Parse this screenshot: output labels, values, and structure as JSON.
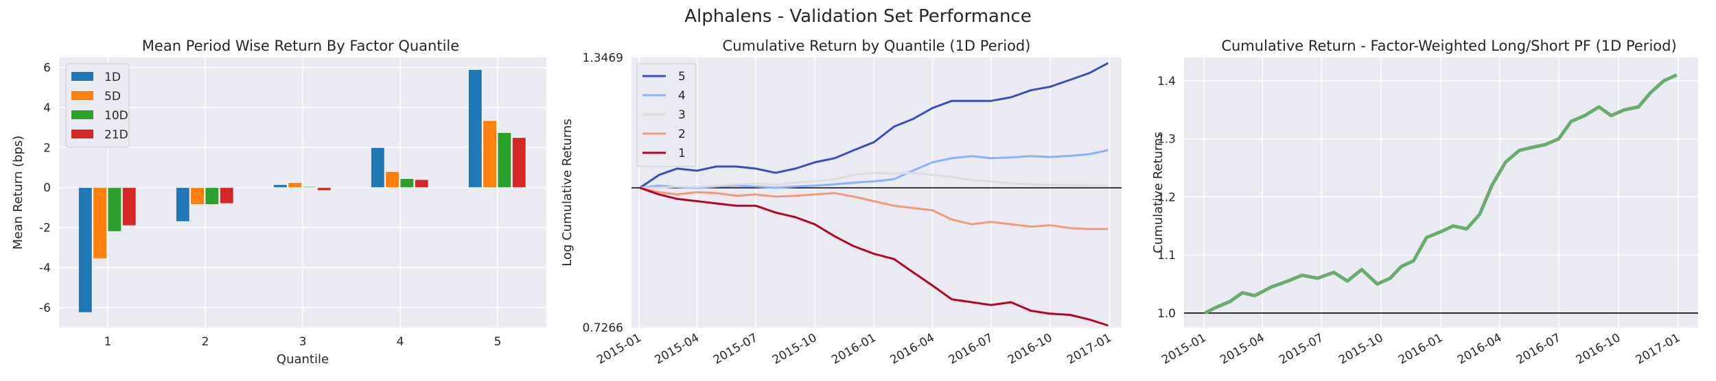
{
  "figure": {
    "suptitle": "Alphalens - Validation Set Performance"
  },
  "chart_data": [
    {
      "type": "bar",
      "title": "Mean Period Wise Return By Factor Quantile",
      "xlabel": "Quantile",
      "ylabel": "Mean Return (bps)",
      "categories": [
        "1",
        "2",
        "3",
        "4",
        "5"
      ],
      "ylim": [
        -7,
        6.5
      ],
      "yticks": [
        -6,
        -4,
        -2,
        0,
        2,
        4,
        6
      ],
      "legend_position": "upper-left",
      "grid": true,
      "series": [
        {
          "name": "1D",
          "color": "#1f77b4",
          "values": [
            -6.25,
            -1.7,
            0.15,
            2.0,
            5.9
          ]
        },
        {
          "name": "5D",
          "color": "#ff7f0e",
          "values": [
            -3.55,
            -0.85,
            0.25,
            0.8,
            3.35
          ]
        },
        {
          "name": "10D",
          "color": "#2ca02c",
          "values": [
            -2.2,
            -0.85,
            0.05,
            0.45,
            2.75
          ]
        },
        {
          "name": "21D",
          "color": "#d62728",
          "values": [
            -1.9,
            -0.8,
            -0.15,
            0.4,
            2.5
          ]
        }
      ]
    },
    {
      "type": "line",
      "title": "Cumulative Return by Quantile (1D Period)",
      "ylabel": "Log Cumulative Returns",
      "yscale": "log",
      "ylim": [
        0.7266,
        1.3469
      ],
      "yticks": [
        "0.7266",
        "1.3469"
      ],
      "xlim": [
        "2014-12-20",
        "2017-01-20"
      ],
      "xticks": [
        "2015-01",
        "2015-04",
        "2015-07",
        "2015-10",
        "2016-01",
        "2016-04",
        "2016-07",
        "2016-10",
        "2017-01"
      ],
      "baseline": 1.0,
      "legend_position": "upper-left",
      "grid": true,
      "x": [
        "2015-01-02",
        "2015-02-01",
        "2015-03-01",
        "2015-04-01",
        "2015-05-01",
        "2015-06-01",
        "2015-07-01",
        "2015-08-01",
        "2015-09-01",
        "2015-10-01",
        "2015-11-01",
        "2015-12-01",
        "2016-01-01",
        "2016-02-01",
        "2016-03-01",
        "2016-04-01",
        "2016-05-01",
        "2016-06-01",
        "2016-07-01",
        "2016-08-01",
        "2016-09-01",
        "2016-10-01",
        "2016-11-01",
        "2016-12-01",
        "2016-12-30"
      ],
      "series": [
        {
          "name": "5",
          "color": "#3b4cc0",
          "values": [
            1.0,
            1.03,
            1.045,
            1.04,
            1.05,
            1.05,
            1.045,
            1.035,
            1.045,
            1.06,
            1.07,
            1.09,
            1.11,
            1.15,
            1.17,
            1.2,
            1.22,
            1.22,
            1.22,
            1.23,
            1.25,
            1.26,
            1.28,
            1.3,
            1.33
          ]
        },
        {
          "name": "4",
          "color": "#8db0fe",
          "values": [
            1.0,
            1.005,
            1.002,
            1.0,
            1.003,
            1.005,
            1.003,
            1.0,
            1.003,
            1.005,
            1.008,
            1.012,
            1.015,
            1.02,
            1.04,
            1.06,
            1.07,
            1.075,
            1.07,
            1.072,
            1.075,
            1.073,
            1.076,
            1.08,
            1.09
          ]
        },
        {
          "name": "3",
          "color": "#dddddd",
          "values": [
            1.0,
            1.0,
            1.003,
            1.002,
            1.005,
            1.008,
            1.01,
            1.007,
            1.012,
            1.015,
            1.02,
            1.03,
            1.035,
            1.033,
            1.035,
            1.03,
            1.025,
            1.018,
            1.015,
            1.01,
            1.008,
            1.007,
            1.006,
            1.005,
            1.005
          ]
        },
        {
          "name": "2",
          "color": "#f4987a",
          "values": [
            1.0,
            0.99,
            0.985,
            0.99,
            0.988,
            0.982,
            0.985,
            0.98,
            0.982,
            0.985,
            0.988,
            0.98,
            0.97,
            0.96,
            0.955,
            0.95,
            0.93,
            0.92,
            0.925,
            0.92,
            0.915,
            0.918,
            0.912,
            0.91,
            0.91
          ]
        },
        {
          "name": "1",
          "color": "#b40426",
          "values": [
            1.0,
            0.985,
            0.975,
            0.97,
            0.965,
            0.96,
            0.96,
            0.945,
            0.935,
            0.92,
            0.895,
            0.875,
            0.86,
            0.85,
            0.825,
            0.8,
            0.775,
            0.77,
            0.765,
            0.77,
            0.755,
            0.75,
            0.748,
            0.74,
            0.73
          ]
        }
      ]
    },
    {
      "type": "line",
      "title": "Cumulative Return - Factor-Weighted Long/Short PF (1D Period)",
      "ylabel": "Cumulative Returns",
      "ylim": [
        0.975,
        1.44
      ],
      "yticks": [
        1.0,
        1.1,
        1.2,
        1.3,
        1.4
      ],
      "xlim": [
        "2014-12-01",
        "2017-02-01"
      ],
      "xticks": [
        "2015-01",
        "2015-04",
        "2015-07",
        "2015-10",
        "2016-01",
        "2016-04",
        "2016-07",
        "2016-10",
        "2017-01"
      ],
      "baseline": 1.0,
      "grid": true,
      "x": [
        "2015-01-02",
        "2015-01-20",
        "2015-02-10",
        "2015-03-01",
        "2015-03-20",
        "2015-04-15",
        "2015-05-10",
        "2015-06-01",
        "2015-06-25",
        "2015-07-20",
        "2015-08-10",
        "2015-09-01",
        "2015-09-25",
        "2015-10-15",
        "2015-11-01",
        "2015-11-20",
        "2015-12-10",
        "2016-01-01",
        "2016-01-20",
        "2016-02-10",
        "2016-03-01",
        "2016-03-20",
        "2016-04-10",
        "2016-05-01",
        "2016-05-20",
        "2016-06-10",
        "2016-07-01",
        "2016-07-20",
        "2016-08-10",
        "2016-09-01",
        "2016-09-20",
        "2016-10-10",
        "2016-11-01",
        "2016-11-20",
        "2016-12-10",
        "2016-12-30"
      ],
      "series": [
        {
          "name": "",
          "color": "#6aac6f",
          "values": [
            1.0,
            1.01,
            1.02,
            1.035,
            1.03,
            1.045,
            1.055,
            1.065,
            1.06,
            1.07,
            1.055,
            1.075,
            1.05,
            1.06,
            1.08,
            1.09,
            1.13,
            1.14,
            1.15,
            1.145,
            1.17,
            1.22,
            1.26,
            1.28,
            1.285,
            1.29,
            1.3,
            1.33,
            1.34,
            1.355,
            1.34,
            1.35,
            1.355,
            1.38,
            1.4,
            1.41
          ]
        }
      ]
    }
  ]
}
